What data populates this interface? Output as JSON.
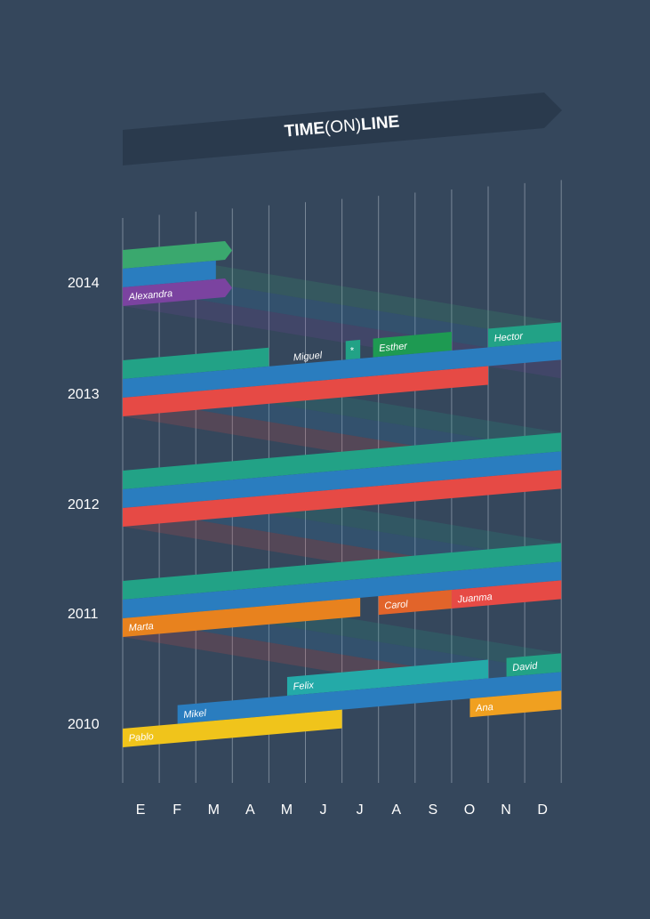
{
  "title": {
    "bold_a": "TIME",
    "light": "(ON)",
    "bold_b": "LINE"
  },
  "chart_data": {
    "type": "timeline",
    "years": [
      "2014",
      "2013",
      "2012",
      "2011",
      "2010"
    ],
    "months": [
      "E",
      "F",
      "M",
      "A",
      "M",
      "J",
      "J",
      "A",
      "S",
      "O",
      "N",
      "D"
    ],
    "colors": {
      "background": "#35475c",
      "banner": "#2a3a4d",
      "gridline": "#8a97a6",
      "green": "#3aa86e",
      "teal": "#22a286",
      "blue": "#2a7dbf",
      "purple": "#7b43a0",
      "red": "#e64a45",
      "darkgreen": "#1e9a52",
      "orange": "#e8821e",
      "orangered": "#e2642a",
      "cyan": "#24aaa8",
      "amber": "#f0a020",
      "yellow": "#f0c41b"
    },
    "bars": [
      {
        "year": "2014",
        "lane": 0,
        "start": 0,
        "end": 2.8,
        "color": "green",
        "label": "",
        "arrow": true
      },
      {
        "year": "2014",
        "lane": 1,
        "start": 0,
        "end": 2.55,
        "color": "blue",
        "label": ""
      },
      {
        "year": "2014",
        "lane": 2,
        "start": 0,
        "end": 2.8,
        "color": "purple",
        "label": "Alexandra",
        "arrow": true
      },
      {
        "year": "2013",
        "lane": 0,
        "start": 0,
        "end": 4.0,
        "color": "teal",
        "label": ""
      },
      {
        "year": "2013",
        "lane": 0,
        "start": 6.1,
        "end": 6.5,
        "color": "teal",
        "label": "*"
      },
      {
        "year": "2013",
        "lane": 0,
        "start": 6.85,
        "end": 9.0,
        "color": "darkgreen",
        "label": "Esther"
      },
      {
        "year": "2013",
        "lane": 0,
        "start": 10.0,
        "end": 12.0,
        "color": "teal",
        "label": "Hector"
      },
      {
        "year": "2013",
        "lane": 1,
        "start": 0,
        "end": 12.0,
        "color": "blue",
        "label": ""
      },
      {
        "year": "2013",
        "lane": 2,
        "start": 0,
        "end": 10.0,
        "color": "red",
        "label": ""
      },
      {
        "year": "2012",
        "lane": 0,
        "start": 0,
        "end": 12.0,
        "color": "teal",
        "label": ""
      },
      {
        "year": "2012",
        "lane": 1,
        "start": 0,
        "end": 12.0,
        "color": "blue",
        "label": ""
      },
      {
        "year": "2012",
        "lane": 2,
        "start": 0,
        "end": 12.0,
        "color": "red",
        "label": ""
      },
      {
        "year": "2011",
        "lane": 0,
        "start": 0,
        "end": 12.0,
        "color": "teal",
        "label": ""
      },
      {
        "year": "2011",
        "lane": 1,
        "start": 0,
        "end": 12.0,
        "color": "blue",
        "label": ""
      },
      {
        "year": "2011",
        "lane": 2,
        "start": 0,
        "end": 6.5,
        "color": "orange",
        "label": "Marta"
      },
      {
        "year": "2011",
        "lane": 2,
        "start": 7.0,
        "end": 9.0,
        "color": "orangered",
        "label": "Carol"
      },
      {
        "year": "2011",
        "lane": 2,
        "start": 9.0,
        "end": 12.0,
        "color": "red",
        "label": "Juanma"
      },
      {
        "year": "2010",
        "lane": 0,
        "start": 4.5,
        "end": 10.0,
        "color": "cyan",
        "label": "Felix"
      },
      {
        "year": "2010",
        "lane": 0,
        "start": 10.5,
        "end": 12.0,
        "color": "teal",
        "label": "David"
      },
      {
        "year": "2010",
        "lane": 1,
        "start": 1.5,
        "end": 12.0,
        "color": "blue",
        "label": "Mikel"
      },
      {
        "year": "2010",
        "lane": 2,
        "start": 0,
        "end": 6.0,
        "color": "yellow",
        "label": "Pablo"
      },
      {
        "year": "2010",
        "lane": 2,
        "start": 9.5,
        "end": 12.0,
        "color": "amber",
        "label": "Ana"
      }
    ],
    "floating_labels": [
      {
        "year": "2013",
        "lane": 0,
        "at": 5.55,
        "text": "Miguel"
      }
    ]
  }
}
